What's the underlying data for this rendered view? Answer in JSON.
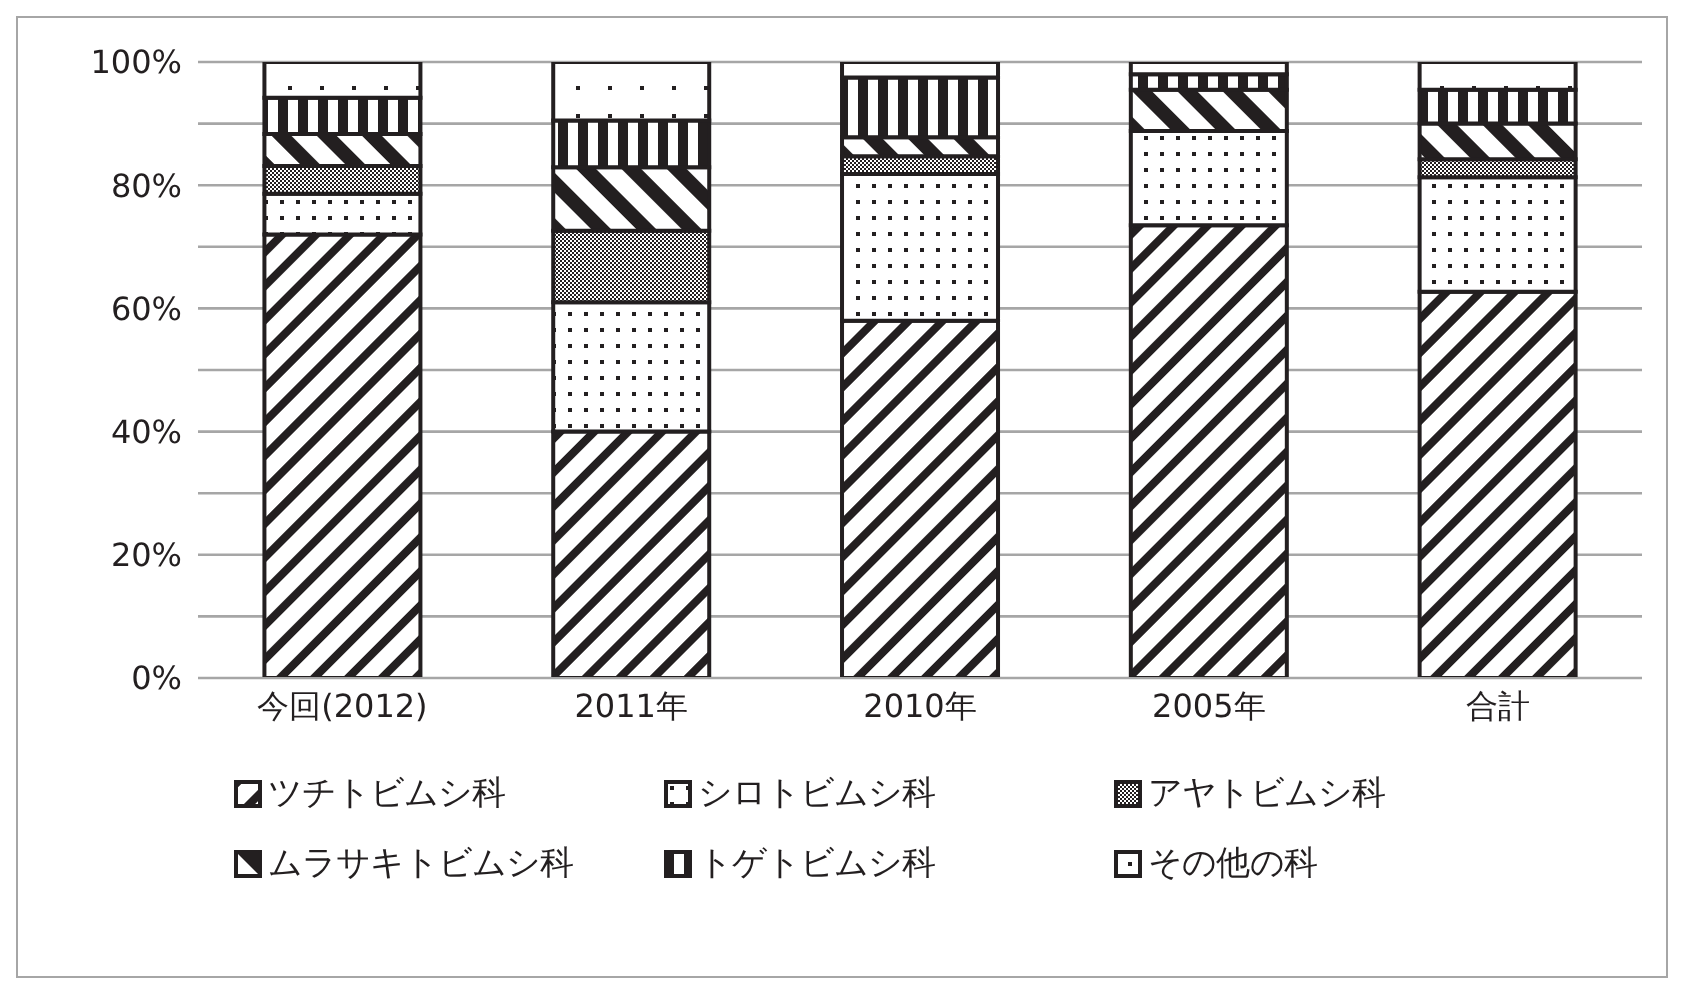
{
  "chart_data": {
    "type": "bar",
    "stacked": true,
    "categories": [
      "今回(2012)",
      "2011年",
      "2010年",
      "2005年",
      "合計"
    ],
    "series": [
      {
        "name": "ツチトビムシ科",
        "color": "#231f20",
        "values": [
          72,
          40,
          58,
          73.5,
          62.7
        ]
      },
      {
        "name": "シロトビムシ科",
        "color": "#231f20",
        "values": [
          6.6,
          21,
          23.8,
          15.3,
          18.6
        ]
      },
      {
        "name": "アヤトビムシ科",
        "color": "#231f20",
        "values": [
          4.5,
          11.6,
          2.9,
          0,
          2.9
        ]
      },
      {
        "name": "ムラサキトビムシ科",
        "color": "#231f20",
        "values": [
          5.2,
          10.3,
          3.1,
          6.7,
          5.8
        ]
      },
      {
        "name": "トゲトビムシ科",
        "color": "#231f20",
        "values": [
          5.9,
          7.6,
          9.7,
          2.5,
          5.5
        ]
      },
      {
        "name": "その他の科",
        "color": "#231f20",
        "values": [
          5.8,
          9.5,
          2.5,
          2,
          4.5
        ]
      }
    ],
    "ylim": [
      0,
      100
    ],
    "yticks": [
      {
        "value": 0,
        "label": "0%"
      },
      {
        "value": 10,
        "label": null
      },
      {
        "value": 20,
        "label": "20%"
      },
      {
        "value": 30,
        "label": null
      },
      {
        "value": 40,
        "label": "40%"
      },
      {
        "value": 50,
        "label": null
      },
      {
        "value": 60,
        "label": "60%"
      },
      {
        "value": 70,
        "label": null
      },
      {
        "value": 80,
        "label": "80%"
      },
      {
        "value": 90,
        "label": null
      },
      {
        "value": 100,
        "label": "100%"
      }
    ],
    "grid": "y",
    "legend": "bottom"
  }
}
